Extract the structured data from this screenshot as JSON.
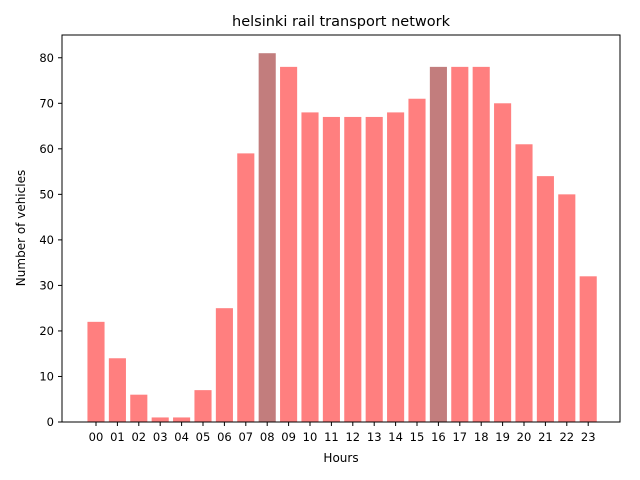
{
  "chart_data": {
    "type": "bar",
    "title": "helsinki rail transport network",
    "xlabel": "Hours",
    "ylabel": "Number of vehicles",
    "categories": [
      "00",
      "01",
      "02",
      "03",
      "04",
      "05",
      "06",
      "07",
      "08",
      "09",
      "10",
      "11",
      "12",
      "13",
      "14",
      "15",
      "16",
      "17",
      "18",
      "19",
      "20",
      "21",
      "22",
      "23"
    ],
    "values": [
      22,
      14,
      6,
      1,
      1,
      7,
      25,
      59,
      81,
      78,
      68,
      67,
      67,
      67,
      68,
      71,
      78,
      78,
      78,
      70,
      61,
      54,
      50,
      32
    ],
    "highlighted": [
      "08",
      "16"
    ],
    "ylim": [
      0,
      85
    ],
    "yticks": [
      0,
      10,
      20,
      30,
      40,
      50,
      60,
      70,
      80
    ],
    "grid": false,
    "legend": "none",
    "colors": {
      "bar": "#ff7f7f",
      "highlight": "#c27d7d",
      "axis": "#000000"
    }
  }
}
